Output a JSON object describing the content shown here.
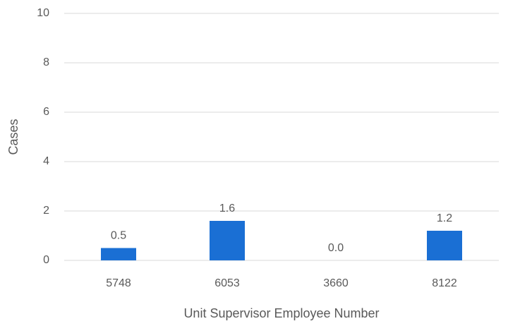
{
  "chart_data": {
    "type": "bar",
    "categories": [
      "5748",
      "6053",
      "3660",
      "8122"
    ],
    "values": [
      0.5,
      1.6,
      0,
      1.2
    ],
    "value_labels": [
      "0.5",
      "1.6",
      "0.0",
      "1.2"
    ],
    "color": "#1a6fd4",
    "ylim": [
      0,
      10
    ],
    "yticks": [
      0,
      2,
      4,
      6,
      8,
      10
    ],
    "grid": true,
    "x_label": "Unit Supervisor Employee Number",
    "y_label": "Cases"
  }
}
